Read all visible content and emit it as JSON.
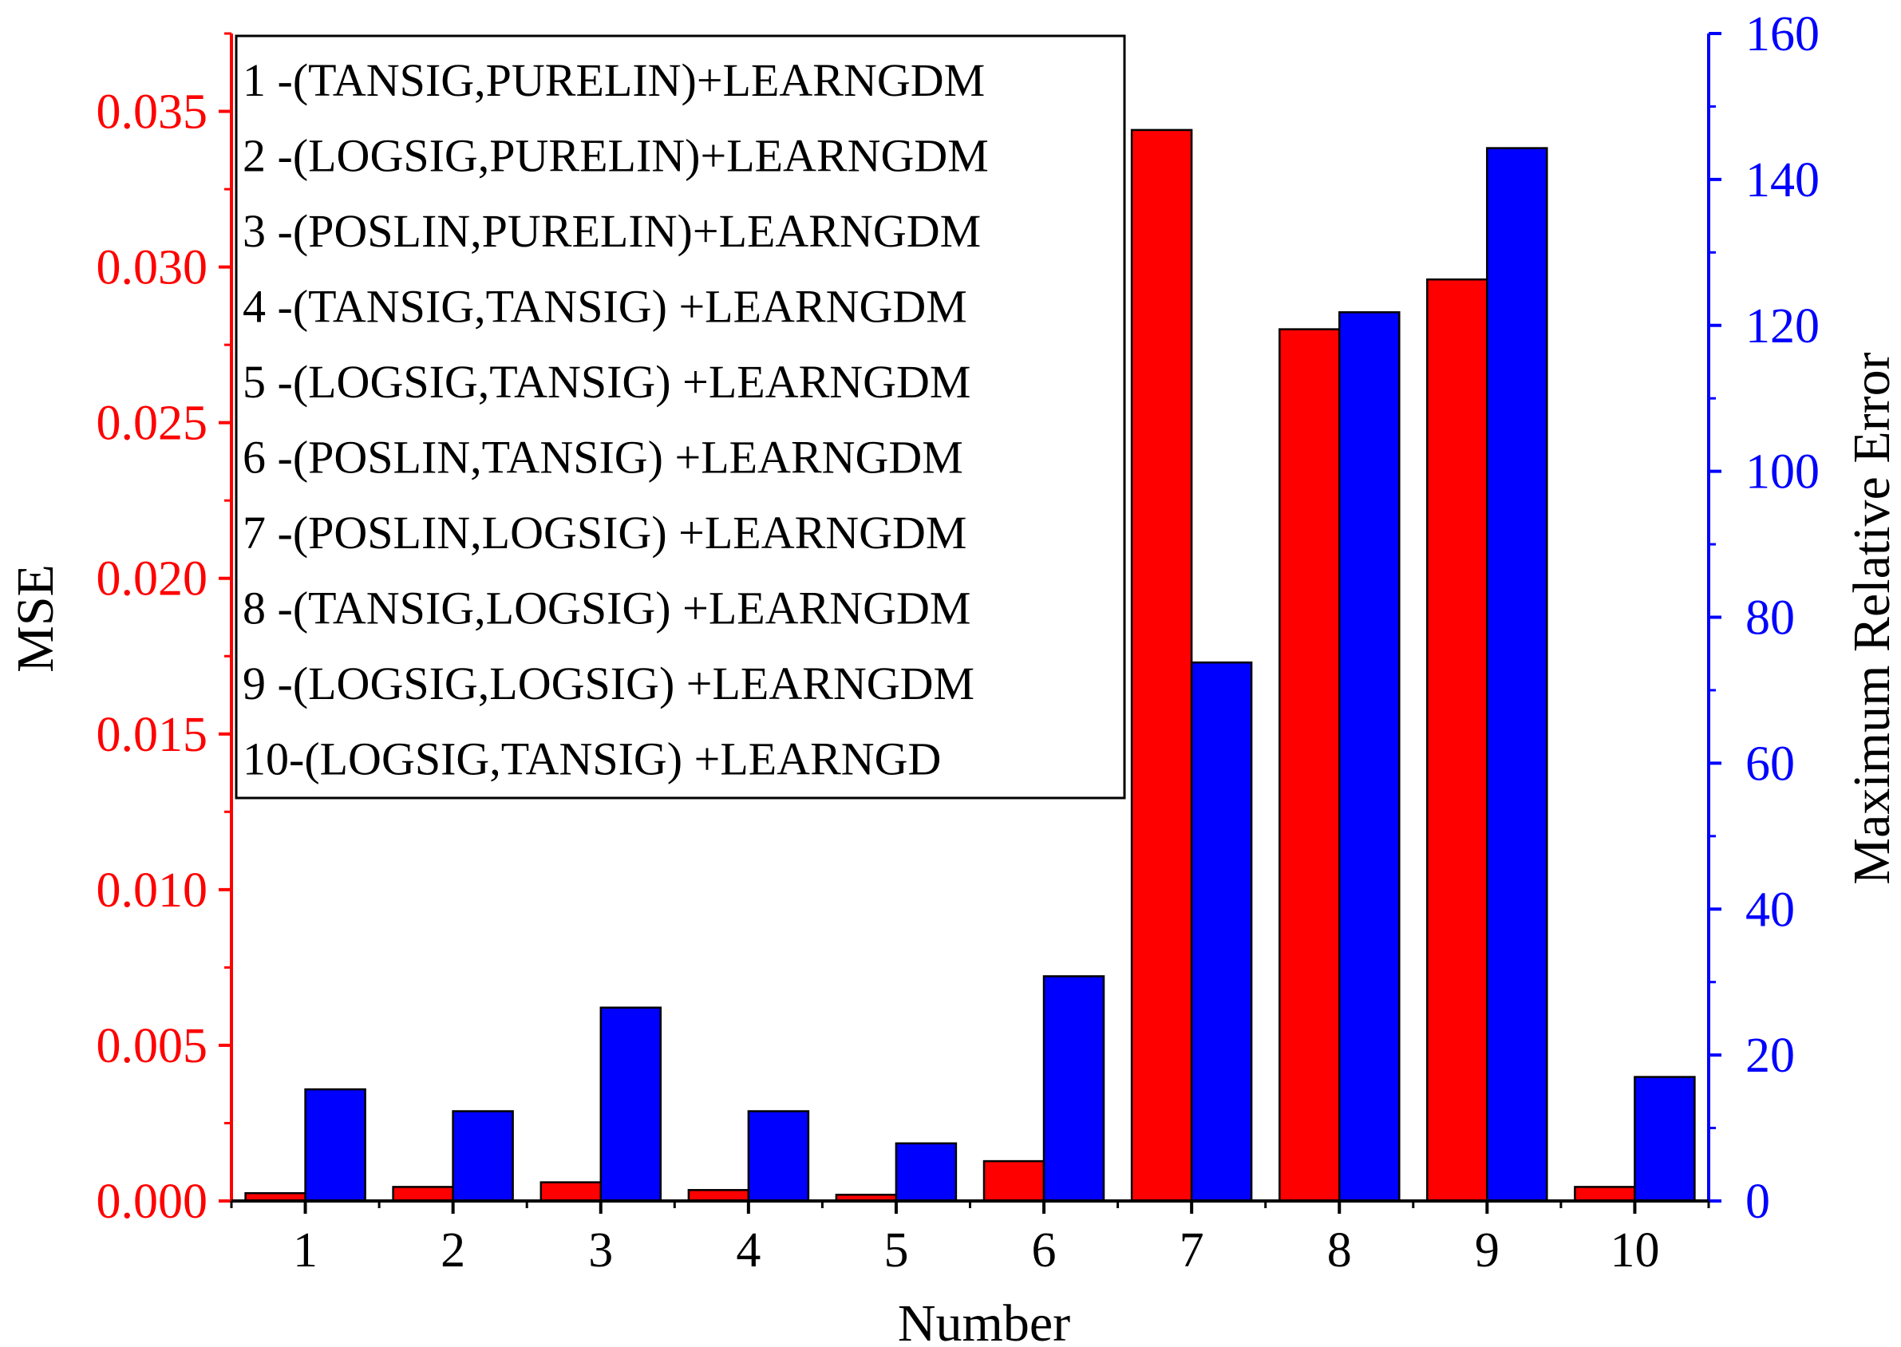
{
  "chart_data": {
    "type": "bar",
    "categories": [
      "1",
      "2",
      "3",
      "4",
      "5",
      "6",
      "7",
      "8",
      "9",
      "10"
    ],
    "series": [
      {
        "name": "MSE",
        "axis": "left",
        "color": "#ff0000",
        "values": [
          0.00025,
          0.00045,
          0.0006,
          0.00035,
          0.0002,
          0.00128,
          0.0344,
          0.028,
          0.0296,
          0.00045
        ]
      },
      {
        "name": "Maximum Relative Error",
        "axis": "right",
        "color": "#0000ff",
        "values": [
          15.3,
          12.3,
          26.5,
          12.3,
          7.9,
          30.8,
          73.8,
          121.8,
          144.3,
          17
        ]
      }
    ],
    "xlabel": "Number",
    "ylabel_left": "MSE",
    "ylabel_right": "Maximum Relative Error",
    "ylim_left": [
      0,
      0.0375
    ],
    "ylim_right": [
      0,
      160
    ],
    "yticks_left": [
      "0.000",
      "0.005",
      "0.010",
      "0.015",
      "0.020",
      "0.025",
      "0.030",
      "0.035"
    ],
    "yticks_right": [
      "0",
      "20",
      "40",
      "60",
      "80",
      "100",
      "120",
      "140",
      "160"
    ],
    "left_axis_color": "#ff0000",
    "right_axis_color": "#0000ff",
    "legend_placement": "top-left",
    "legend": [
      "1 -(TANSIG,PURELIN)+LEARNGDM",
      "2 -(LOGSIG,PURELIN)+LEARNGDM",
      "3 -(POSLIN,PURELIN)+LEARNGDM",
      "4 -(TANSIG,TANSIG) +LEARNGDM",
      "5 -(LOGSIG,TANSIG) +LEARNGDM",
      "6 -(POSLIN,TANSIG) +LEARNGDM",
      "7 -(POSLIN,LOGSIG) +LEARNGDM",
      "8 -(TANSIG,LOGSIG) +LEARNGDM",
      "9 -(LOGSIG,LOGSIG) +LEARNGDM",
      "10-(LOGSIG,TANSIG) +LEARNGD"
    ],
    "grid": false
  }
}
